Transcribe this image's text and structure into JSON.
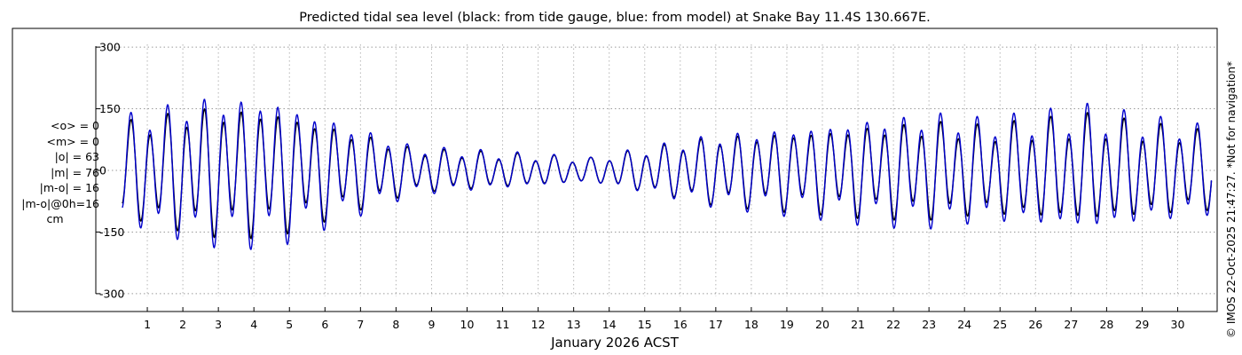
{
  "chart_data": {
    "type": "line",
    "title": "Predicted tidal sea level (black: from tide gauge, blue: from model) at Snake Bay 11.4S 130.667E.",
    "xlabel": "January 2026 ACST",
    "ylabel": "cm",
    "xlim": [
      0,
      31
    ],
    "ylim": [
      -350,
      350
    ],
    "yticks": [
      -300,
      -150,
      0,
      150,
      300
    ],
    "ytick_labels": [
      "-300",
      "-150",
      "0",
      "150",
      "300"
    ],
    "xticks": [
      1,
      2,
      3,
      4,
      5,
      6,
      7,
      8,
      9,
      10,
      11,
      12,
      13,
      14,
      15,
      16,
      17,
      18,
      19,
      20,
      21,
      22,
      23,
      24,
      25,
      26,
      27,
      28,
      29,
      30
    ],
    "xtick_labels": [
      "1",
      "2",
      "3",
      "4",
      "5",
      "6",
      "7",
      "8",
      "9",
      "10",
      "11",
      "12",
      "13",
      "14",
      "15",
      "16",
      "17",
      "18",
      "19",
      "20",
      "21",
      "22",
      "23",
      "24",
      "25",
      "26",
      "27",
      "28",
      "29",
      "30"
    ],
    "grid": true,
    "series": [
      {
        "name": "tide gauge",
        "color": "#000000",
        "amp": [
          95,
          130,
          130,
          45,
          25,
          70,
          85,
          95,
          100,
          90,
          100,
          110,
          95,
          80
        ],
        "envelope_days": [
          0.2,
          2.5,
          4.5,
          8.5,
          13.5,
          17,
          20,
          21.5,
          23.5,
          24.5,
          26,
          27.5,
          29,
          31
        ]
      },
      {
        "name": "model",
        "color": "#0000cc",
        "amp": [
          108,
          150,
          152,
          50,
          25,
          75,
          95,
          110,
          118,
          105,
          115,
          128,
          110,
          90
        ],
        "envelope_days": [
          0.2,
          2.5,
          4.5,
          8.5,
          13.5,
          17,
          20,
          21.5,
          23.5,
          24.5,
          26,
          27.5,
          29,
          31
        ]
      }
    ]
  },
  "stats": {
    "mean_o": "<o> = 0",
    "mean_m": "<m> = 0",
    "abs_o": "|o| = 63",
    "abs_m": "|m| = 76",
    "abs_mo": "|m-o| = 16",
    "abs_mo_0h": "|m-o|@0h=16",
    "unit": "cm"
  },
  "footer": "© IMOS 22-Oct-2025 21:47:27. *Not for navigation*",
  "colors": {
    "gauge": "#000000",
    "model": "#0000cc",
    "grid": "#b0b0b0"
  }
}
